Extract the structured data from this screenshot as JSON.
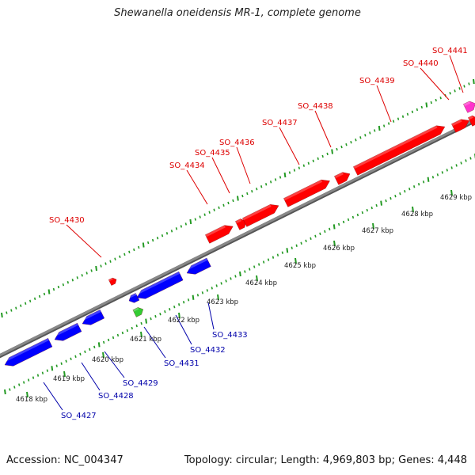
{
  "title": "Shewanella oneidensis MR-1, complete genome",
  "accession": "Accession: NC_004347",
  "summary": "Topology: circular; Length: 4,969,803 bp; Genes: 4,448",
  "colors": {
    "backbone": "#888888",
    "forward_gene": "#ff0000",
    "reverse_gene": "#0000ff",
    "green_feature": "#33cc33",
    "magenta_feature": "#ff33cc",
    "ticks": "#229922",
    "forward_label": "#dd0000",
    "reverse_label": "#0000aa"
  },
  "kbp_labels": [
    "4618 kbp",
    "4619 kbp",
    "4620 kbp",
    "4621 kbp",
    "4622 kbp",
    "4623 kbp",
    "4624 kbp",
    "4625 kbp",
    "4626 kbp",
    "4627 kbp",
    "4628 kbp",
    "4629 kbp"
  ],
  "forward_labels": [
    "SO_4430",
    "SO_4434",
    "SO_4435",
    "SO_4436",
    "SO_4437",
    "SO_4438",
    "SO_4439",
    "SO_4440",
    "SO_4441"
  ],
  "reverse_labels": [
    "SO_4427",
    "SO_4428",
    "SO_4429",
    "SO_4431",
    "SO_4432",
    "SO_4433"
  ]
}
